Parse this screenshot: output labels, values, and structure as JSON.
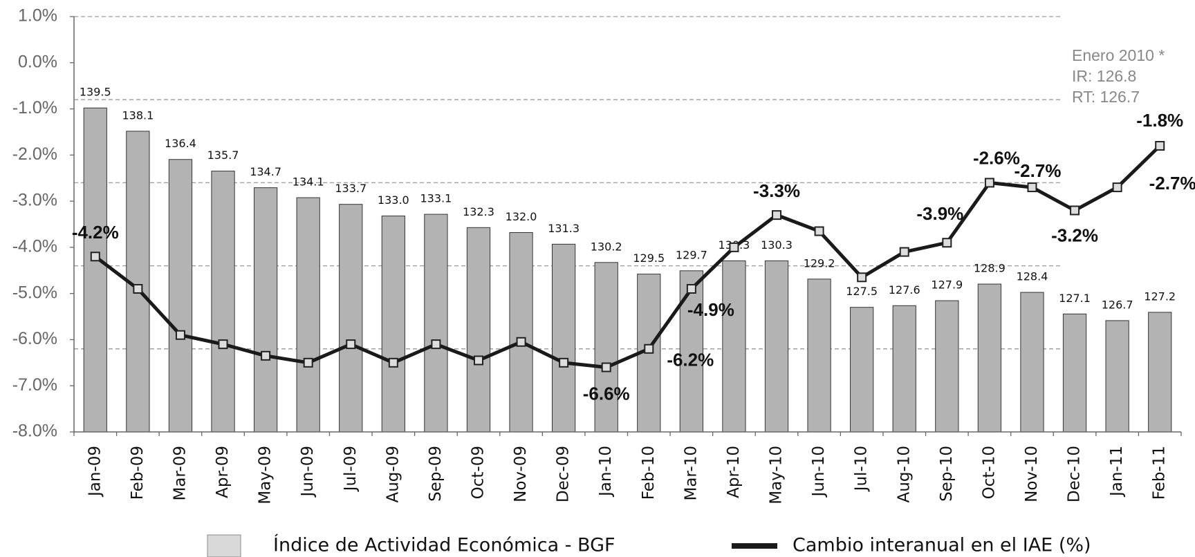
{
  "chart_data": {
    "type": "bar-line",
    "categories": [
      "Jan-09",
      "Feb-09",
      "Mar-09",
      "Apr-09",
      "May-09",
      "Jun-09",
      "Jul-09",
      "Aug-09",
      "Sep-09",
      "Oct-09",
      "Nov-09",
      "Dec-09",
      "Jan-10",
      "Feb-10",
      "Mar-10",
      "Apr-10",
      "May-10",
      "Jun-10",
      "Jul-10",
      "Aug-10",
      "Sep-10",
      "Oct-10",
      "Nov-10",
      "Dec-10",
      "Jan-11",
      "Feb-11"
    ],
    "series": [
      {
        "name": "Índice de Actividad Económica - BGF",
        "type": "bar",
        "axis": "y2",
        "color": "#b3b3b3",
        "values": [
          139.5,
          138.1,
          136.4,
          135.7,
          134.7,
          134.1,
          133.7,
          133.0,
          133.1,
          132.3,
          132.0,
          131.3,
          130.2,
          129.5,
          129.7,
          130.3,
          130.3,
          129.2,
          127.5,
          127.6,
          127.9,
          128.9,
          128.4,
          127.1,
          126.7,
          127.2
        ],
        "value_labels": [
          "139.5",
          "138.1",
          "136.4",
          "135.7",
          "134.7",
          "134.1",
          "133.7",
          "133.0",
          "133.1",
          "132.3",
          "132.0",
          "131.3",
          "130.2",
          "129.5",
          "129.7",
          "130.3",
          "130.3",
          "129.2",
          "127.5",
          "127.6",
          "127.9",
          "128.9",
          "128.4",
          "127.1",
          "126.7",
          "127.2"
        ]
      },
      {
        "name": "Cambio interanual en el IAE (%)",
        "type": "line",
        "axis": "y",
        "color": "#1a1a1a",
        "values": [
          -4.2,
          -4.9,
          -5.9,
          -6.1,
          -6.35,
          -6.5,
          -6.1,
          -6.5,
          -6.1,
          -6.45,
          -6.05,
          -6.5,
          -6.6,
          -6.2,
          -4.9,
          -4.0,
          -3.3,
          -3.65,
          -4.65,
          -4.1,
          -3.9,
          -2.6,
          -2.7,
          -3.2,
          -2.7,
          -1.8
        ],
        "value_labels": [
          "-4.2%",
          null,
          null,
          null,
          null,
          null,
          null,
          null,
          null,
          null,
          null,
          null,
          "-6.6%",
          "-6.2%",
          "-4.9%",
          null,
          "-3.3%",
          null,
          null,
          null,
          "-3.9%",
          "-2.6%",
          "-2.7%",
          "-3.2%",
          "-2.7%",
          "-1.8%"
        ]
      }
    ],
    "ylim": [
      -8,
      1
    ],
    "yticks": [
      {
        "value": -8,
        "label": "-8.0%"
      },
      {
        "value": -7,
        "label": "-7.0%"
      },
      {
        "value": -6,
        "label": "-6.0%"
      },
      {
        "value": -5,
        "label": "-5.0%"
      },
      {
        "value": -4,
        "label": "-4.0%"
      },
      {
        "value": -3,
        "label": "-3.0%"
      },
      {
        "value": -2,
        "label": "-2.0%"
      },
      {
        "value": -1,
        "label": "-1.0%"
      },
      {
        "value": 0,
        "label": "0.0%"
      },
      {
        "value": 1,
        "label": "1.0%"
      }
    ],
    "y2lim": [
      120,
      145
    ],
    "y2ticks": [
      125,
      130,
      135,
      140,
      145
    ],
    "y2_tick_labels_shown": false,
    "grid": "y2",
    "legend": "bottom",
    "annotations": [
      "Enero 2010 *",
      "IR: 126.8",
      "RT: 126.7"
    ]
  }
}
